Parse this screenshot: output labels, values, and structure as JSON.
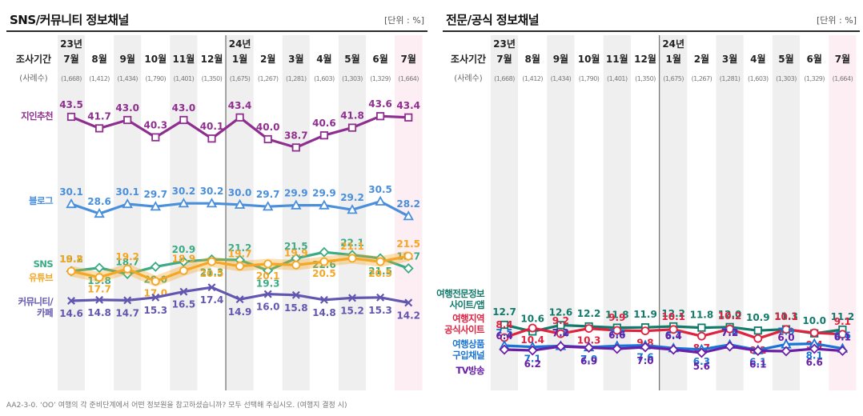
{
  "footnote": "AA2-3-0. ‘OO’ 여행의 각 준비단계에서 어떤 정보원을 참고하셨습니까? 모두 선택해 주십시오. (여행지 결정 시)",
  "colors": {
    "band": "#efefef",
    "highlight": "#fdeef3",
    "divider": "#777777"
  },
  "chart_data": [
    {
      "type": "line",
      "title": "SNS/커뮤니티 정보채널",
      "unit": "[단위 : %]",
      "header_label": "조사기간",
      "sample_label": "(사례수)",
      "year_labels": [
        {
          "index": 0,
          "text": "23년"
        },
        {
          "index": 6,
          "text": "24년"
        }
      ],
      "categories": [
        "7월",
        "8월",
        "9월",
        "10월",
        "11월",
        "12월",
        "1월",
        "2월",
        "3월",
        "4월",
        "5월",
        "6월",
        "7월"
      ],
      "samples": [
        "(1,668)",
        "(1,412)",
        "(1,434)",
        "(1,790)",
        "(1,401)",
        "(1,350)",
        "(1,675)",
        "(1,267)",
        "(1,281)",
        "(1,603)",
        "(1,303)",
        "(1,329)",
        "(1,664)"
      ],
      "series": [
        {
          "name": "지인추천",
          "color": "#8e2f8f",
          "marker": "square",
          "values": [
            43.5,
            41.7,
            43.0,
            40.3,
            43.0,
            40.1,
            43.4,
            40.0,
            38.7,
            40.6,
            41.8,
            43.6,
            43.4
          ]
        },
        {
          "name": "블로그",
          "color": "#4a8fdc",
          "marker": "triangle",
          "values": [
            30.1,
            28.6,
            30.1,
            29.7,
            30.2,
            30.2,
            30.0,
            29.7,
            29.9,
            29.9,
            29.2,
            30.5,
            28.2
          ]
        },
        {
          "name": "SNS",
          "color": "#3aab84",
          "marker": "diamond",
          "values": [
            19.2,
            19.8,
            18.7,
            20.0,
            20.9,
            21.3,
            21.2,
            19.3,
            21.5,
            22.6,
            22.1,
            21.5,
            19.7
          ]
        },
        {
          "name": "유튜브",
          "color": "#f5a623",
          "marker": "circle",
          "values": [
            18.8,
            17.7,
            19.2,
            17.0,
            18.9,
            20.5,
            19.7,
            20.1,
            19.9,
            20.5,
            21.1,
            20.5,
            21.5
          ]
        },
        {
          "name": "커뮤니티/카페",
          "color": "#6257b0",
          "marker": "x",
          "values": [
            14.6,
            14.8,
            14.7,
            15.3,
            16.5,
            17.4,
            14.9,
            16.0,
            15.8,
            14.8,
            15.2,
            15.3,
            14.2
          ]
        }
      ]
    },
    {
      "type": "line",
      "title": "전문/공식 정보채널",
      "unit": "[단위 : %]",
      "header_label": "조사기간",
      "sample_label": "(사례수)",
      "year_labels": [
        {
          "index": 0,
          "text": "23년"
        },
        {
          "index": 6,
          "text": "24년"
        }
      ],
      "categories": [
        "7월",
        "8월",
        "9월",
        "10월",
        "11월",
        "12월",
        "1월",
        "2월",
        "3월",
        "4월",
        "5월",
        "6월",
        "7월"
      ],
      "samples": [
        "(1,668)",
        "(1,412)",
        "(1,434)",
        "(1,790)",
        "(1,401)",
        "(1,350)",
        "(1,675)",
        "(1,267)",
        "(1,281)",
        "(1,603)",
        "(1,303)",
        "(1,329)",
        "(1,664)"
      ],
      "series": [
        {
          "name": "여행전문정보 사이트/앱",
          "color": "#127a6a",
          "marker": "square",
          "values": [
            12.7,
            10.6,
            12.6,
            12.2,
            11.8,
            11.9,
            12.2,
            11.8,
            12.0,
            10.9,
            11.3,
            10.0,
            11.2
          ]
        },
        {
          "name": "여행지역 공식사이트",
          "color": "#e0213f",
          "marker": "circle",
          "values": [
            8.4,
            10.4,
            9.2,
            10.3,
            9.9,
            9.8,
            10.1,
            8.7,
            10.2,
            8.2,
            10.1,
            9.4,
            9.1
          ]
        },
        {
          "name": "여행상품 구입채널",
          "color": "#1a74d6",
          "marker": "triangle",
          "values": [
            7.5,
            7.1,
            7.4,
            7.0,
            7.4,
            7.6,
            6.7,
            6.3,
            7.8,
            6.1,
            7.9,
            8.1,
            6.6
          ]
        },
        {
          "name": "TV방송",
          "color": "#6a1fa8",
          "marker": "diamond",
          "values": [
            6.4,
            6.2,
            7.2,
            6.9,
            6.6,
            7.0,
            6.4,
            5.6,
            7.2,
            6.1,
            6.0,
            6.6,
            6.1
          ]
        }
      ]
    }
  ]
}
